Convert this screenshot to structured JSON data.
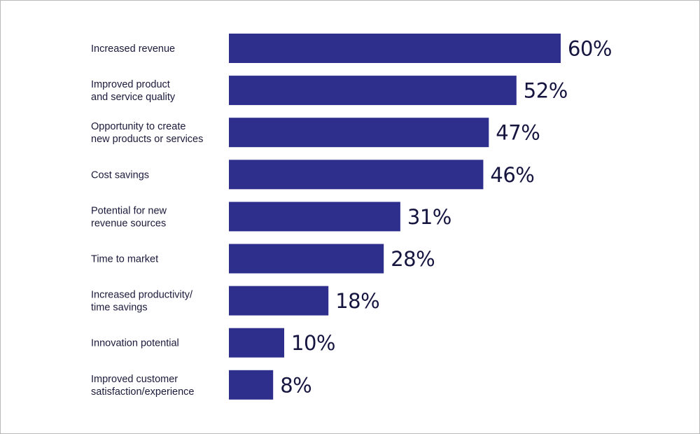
{
  "chart_data": {
    "type": "bar",
    "orientation": "horizontal",
    "categories": [
      [
        "Increased revenue"
      ],
      [
        "Improved product",
        "and service quality"
      ],
      [
        "Opportunity to create",
        "new products or services"
      ],
      [
        "Cost savings"
      ],
      [
        "Potential for new",
        "revenue sources"
      ],
      [
        "Time to market"
      ],
      [
        "Increased productivity/",
        "time savings"
      ],
      [
        "Innovation potential"
      ],
      [
        "Improved customer",
        "satisfaction/experience"
      ]
    ],
    "values": [
      60,
      52,
      47,
      46,
      31,
      28,
      18,
      10,
      8
    ],
    "value_labels": [
      "60%",
      "52%",
      "47%",
      "46%",
      "31%",
      "28%",
      "18%",
      "10%",
      "8%"
    ],
    "bar_color": "#2e2e8c",
    "value_color": "#151540",
    "label_color": "#1b1a3a",
    "xlim": [
      0,
      60
    ],
    "grid": false,
    "legend": "none"
  }
}
